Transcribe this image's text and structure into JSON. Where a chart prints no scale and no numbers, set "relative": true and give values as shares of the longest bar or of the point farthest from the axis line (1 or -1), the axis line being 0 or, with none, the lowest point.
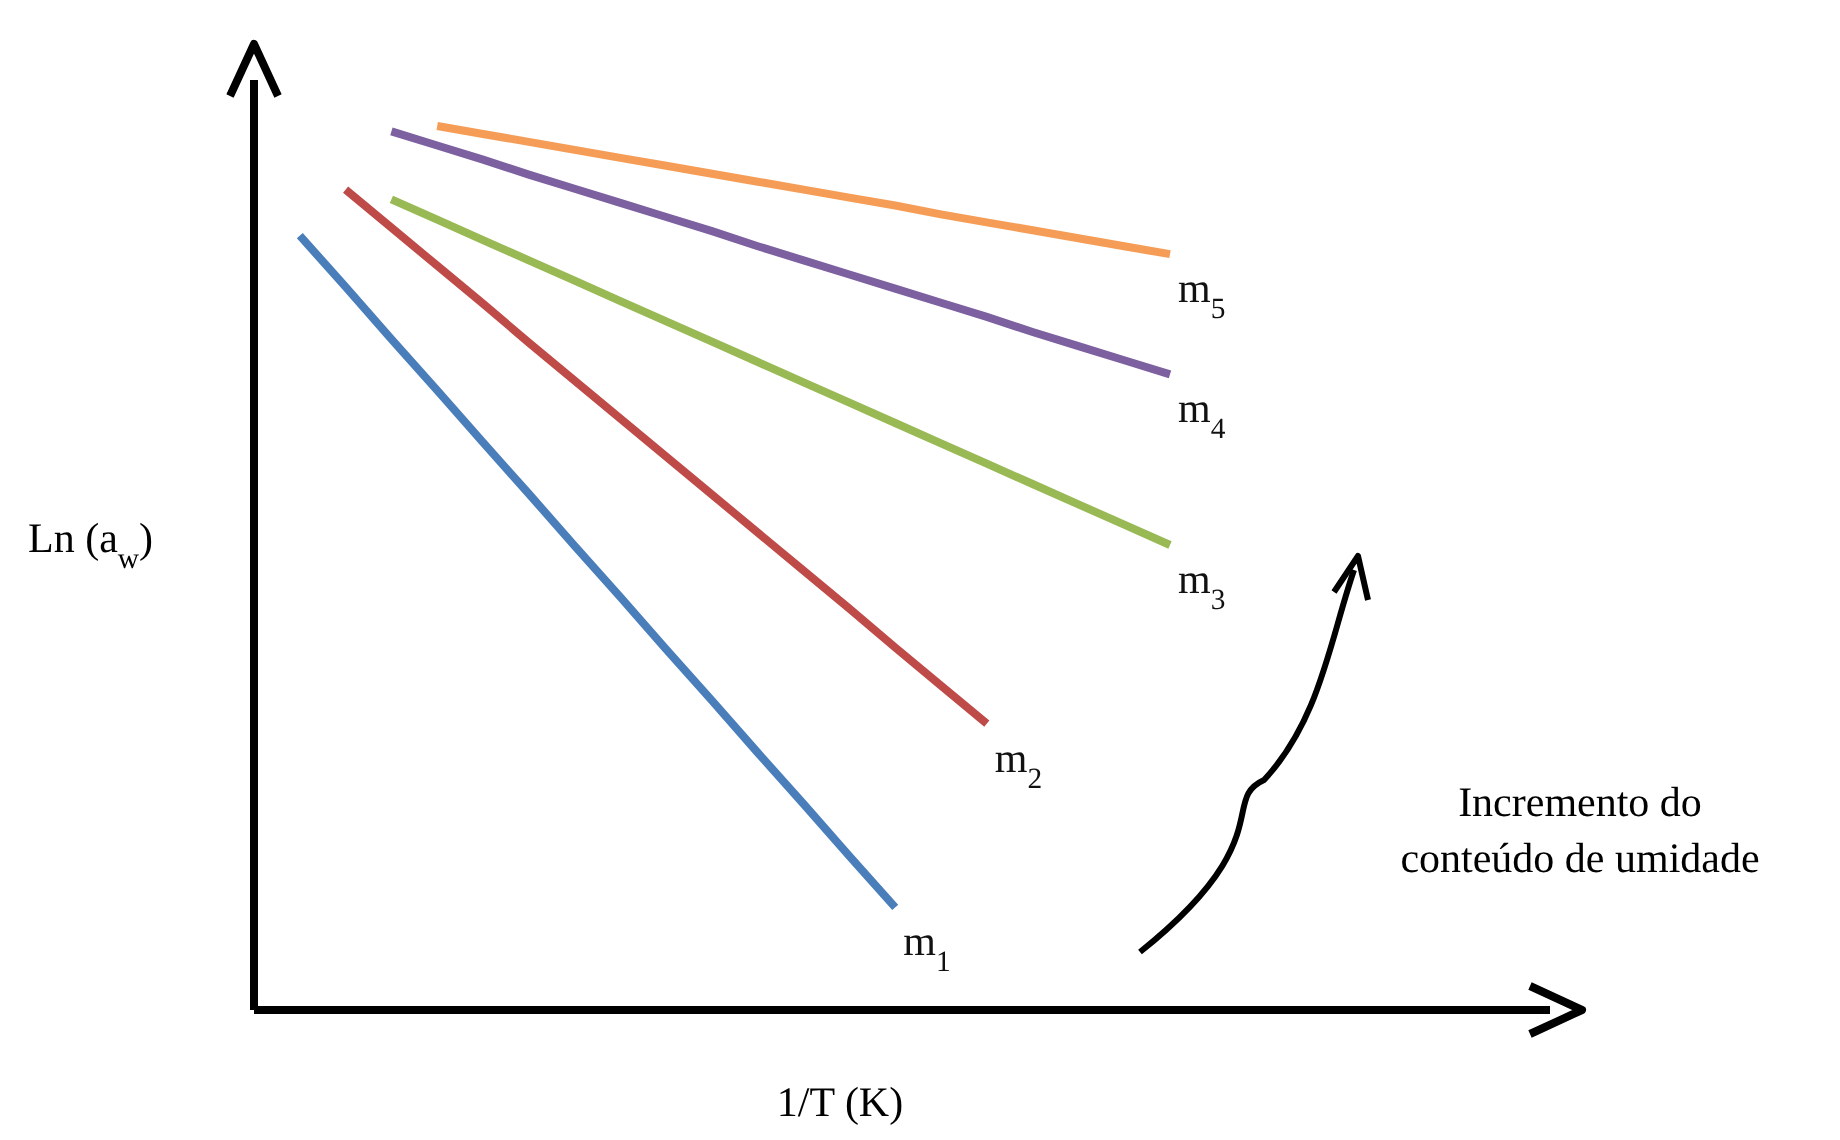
{
  "chart_data": {
    "type": "line",
    "relative": true,
    "xlabel": "1/T (K)",
    "ylabel": "Ln (a$_{w}$)",
    "line_style": "solid",
    "categories": [
      null,
      null,
      null,
      null,
      null,
      null,
      null,
      null,
      null,
      null,
      null,
      null,
      null,
      null,
      null,
      null,
      null,
      null,
      null,
      null
    ],
    "series": [
      {
        "name": "m$_{1}$",
        "color": "#4a7ebb",
        "values": [
          0.876,
          0.818,
          0.759,
          0.701,
          0.642,
          0.584,
          0.525,
          0.467,
          0.408,
          0.35,
          0.291,
          0.233,
          0.174,
          0.116,
          null,
          null,
          null,
          null,
          null,
          null
        ]
      },
      {
        "name": "m$_{2}$",
        "color": "#be4b48",
        "values": [
          null,
          0.928,
          0.885,
          0.842,
          0.799,
          0.755,
          0.712,
          0.669,
          0.626,
          0.583,
          0.54,
          0.497,
          0.454,
          0.41,
          0.367,
          0.324,
          null,
          null,
          null,
          null
        ]
      },
      {
        "name": "m$_{3}$",
        "color": "#98b954",
        "values": [
          null,
          null,
          0.917,
          0.894,
          0.871,
          0.848,
          0.825,
          0.802,
          0.779,
          0.756,
          0.733,
          0.71,
          0.687,
          0.664,
          0.641,
          0.618,
          0.595,
          0.572,
          0.549,
          0.526
        ]
      },
      {
        "name": "m$_{4}$",
        "color": "#7d60a0",
        "values": [
          null,
          null,
          0.994,
          0.978,
          0.962,
          0.945,
          0.929,
          0.913,
          0.897,
          0.881,
          0.864,
          0.848,
          0.832,
          0.816,
          0.8,
          0.784,
          0.767,
          0.751,
          0.735,
          0.719
        ]
      },
      {
        "name": "m$_{5}$",
        "color": "#f59d56",
        "values": [
          null,
          null,
          null,
          1.0,
          0.991,
          0.982,
          0.973,
          0.964,
          0.955,
          0.946,
          0.937,
          0.928,
          0.919,
          0.91,
          0.9,
          0.891,
          0.882,
          0.873,
          0.864,
          0.855
        ]
      }
    ],
    "annotations": [
      "Incremento do\nconteúdo de umidade"
    ]
  }
}
